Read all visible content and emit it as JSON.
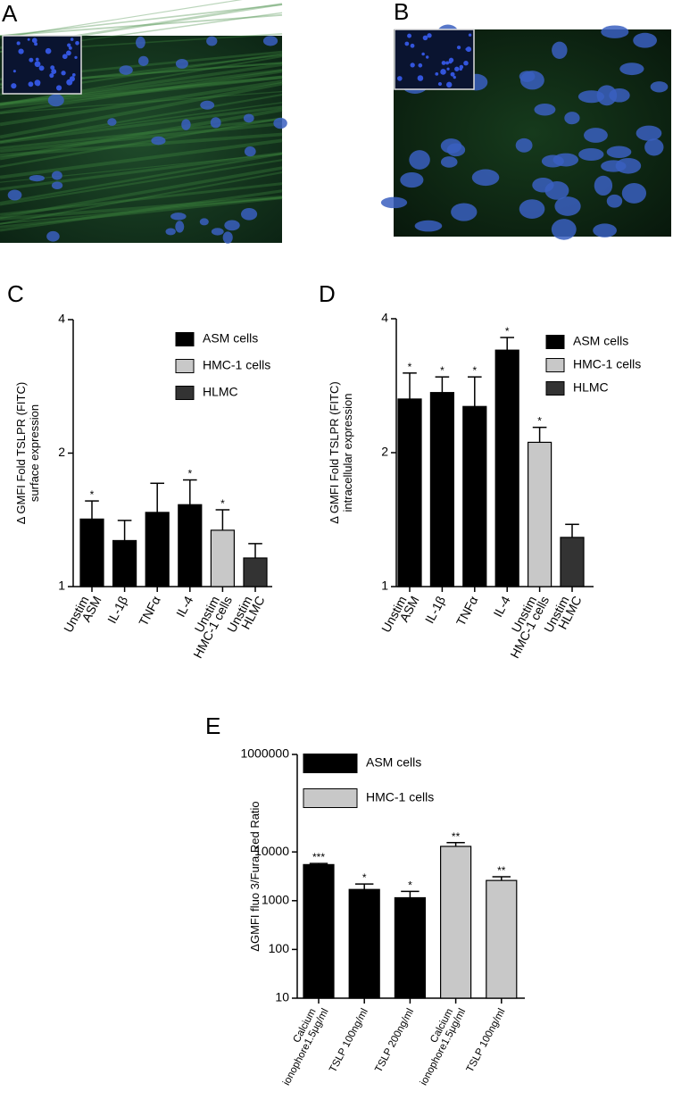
{
  "images": [
    {
      "panel": "A"
    },
    {
      "panel": "B"
    }
  ],
  "chart_data": [
    {
      "type": "bar",
      "panel": "C",
      "log_scale": true,
      "y_label": [
        "Δ GMFI Fold  TSLPR (FITC)",
        "surface expression"
      ],
      "categories": [
        [
          "Unstim",
          "ASM"
        ],
        [
          "IL-1β"
        ],
        [
          "TNFα"
        ],
        [
          "IL-4"
        ],
        [
          "Unstim",
          "HMC-1 cells"
        ],
        [
          "Unstim",
          "HLMC"
        ]
      ],
      "series": [
        {
          "name": "ASM cells",
          "color": "#000000",
          "values": [
            1.42,
            1.27,
            1.47,
            1.53,
            null,
            null
          ],
          "errors": [
            0.14,
            0.14,
            0.24,
            0.21,
            null,
            null
          ]
        },
        {
          "name": "HMC-1 cells",
          "color": "#c8c8c8",
          "values": [
            null,
            null,
            null,
            null,
            1.34,
            null
          ],
          "errors": [
            null,
            null,
            null,
            null,
            0.15,
            null
          ]
        },
        {
          "name": "HLMC",
          "color": "#333333",
          "values": [
            null,
            null,
            null,
            null,
            null,
            1.16
          ],
          "errors": [
            null,
            null,
            null,
            null,
            null,
            0.09
          ]
        }
      ],
      "significance": [
        "*",
        null,
        null,
        "*",
        "*",
        null
      ],
      "ylim": [
        1,
        4
      ],
      "yticks": [
        1,
        2,
        4
      ]
    },
    {
      "type": "bar",
      "panel": "D",
      "log_scale": true,
      "y_label": [
        "Δ GMFI Fold  TSLPR (FITC)",
        "intracellular expression"
      ],
      "categories": [
        [
          "Unstim",
          "ASM"
        ],
        [
          "IL-1β"
        ],
        [
          "TNFα"
        ],
        [
          "IL-4"
        ],
        [
          "Unstim",
          "HMC-1 cells"
        ],
        [
          "Unstim",
          "HLMC"
        ]
      ],
      "series": [
        {
          "name": "ASM cells",
          "color": "#000000",
          "values": [
            2.64,
            2.73,
            2.54,
            3.4,
            null,
            null
          ],
          "errors": [
            0.38,
            0.23,
            0.42,
            0.23,
            null,
            null
          ]
        },
        {
          "name": "HMC-1 cells",
          "color": "#c8c8c8",
          "values": [
            null,
            null,
            null,
            null,
            2.11,
            null
          ],
          "errors": [
            null,
            null,
            null,
            null,
            0.17,
            null
          ]
        },
        {
          "name": "HLMC",
          "color": "#333333",
          "values": [
            null,
            null,
            null,
            null,
            null,
            1.29
          ],
          "errors": [
            null,
            null,
            null,
            null,
            null,
            0.09
          ]
        }
      ],
      "significance": [
        "*",
        "*",
        "*",
        "*",
        "*",
        null
      ],
      "ylim": [
        1,
        4
      ],
      "yticks": [
        1,
        2,
        4
      ]
    },
    {
      "type": "bar",
      "panel": "E",
      "log_scale": true,
      "y_label": [
        "ΔGMFI  fluo 3/Fura Red Ratio"
      ],
      "categories": [
        [
          "Calcium",
          "ionophore1.5μg/ml"
        ],
        [
          "TSLP 100ng/ml"
        ],
        [
          "TSLP 200ng/ml"
        ],
        [
          "Calcium",
          "ionophore1.5μg/ml"
        ],
        [
          "TSLP 100ng/ml"
        ]
      ],
      "series": [
        {
          "name": "ASM cells",
          "color": "#000000",
          "values": [
            5500,
            1700,
            1150,
            null,
            null
          ],
          "errors": [
            300,
            500,
            400,
            null,
            null
          ]
        },
        {
          "name": "HMC-1 cells",
          "color": "#c8c8c8",
          "values": [
            null,
            null,
            null,
            13000,
            2600
          ],
          "errors": [
            null,
            null,
            null,
            2500,
            500
          ]
        }
      ],
      "significance": [
        "***",
        "*",
        "*",
        "**",
        "**"
      ],
      "ylim": [
        10,
        1000000
      ],
      "yticks": [
        10,
        100,
        1000,
        10000,
        1000000
      ]
    }
  ]
}
